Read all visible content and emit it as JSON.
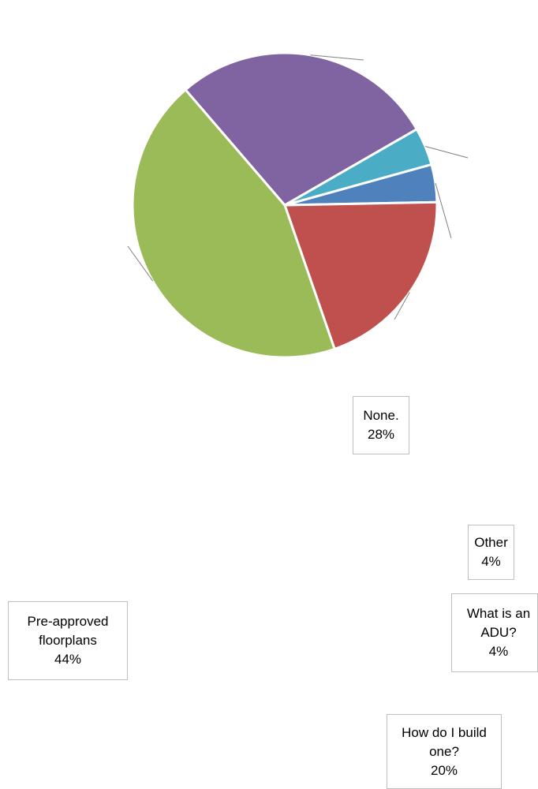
{
  "chart_data": {
    "type": "pie",
    "title": "",
    "slices": [
      {
        "category": "What is an ADU?",
        "label": "What is an\nADU?",
        "percent_label": "4%",
        "value": 4,
        "color": "#4f81bd"
      },
      {
        "category": "How do I build one?",
        "label": "How do I build\none?",
        "percent_label": "20%",
        "value": 20,
        "color": "#c0504d"
      },
      {
        "category": "Pre-approved floorplans",
        "label": "Pre-approved\nfloorplans",
        "percent_label": "44%",
        "value": 44,
        "color": "#9bbb59"
      },
      {
        "category": "None.",
        "label": "None.",
        "percent_label": "28%",
        "value": 28,
        "color": "#8064a2"
      },
      {
        "category": "Other",
        "label": "Other",
        "percent_label": "4%",
        "value": 4,
        "color": "#4bacc6"
      }
    ],
    "legend": "none",
    "data_labels": "category and percent, callout boxes"
  }
}
